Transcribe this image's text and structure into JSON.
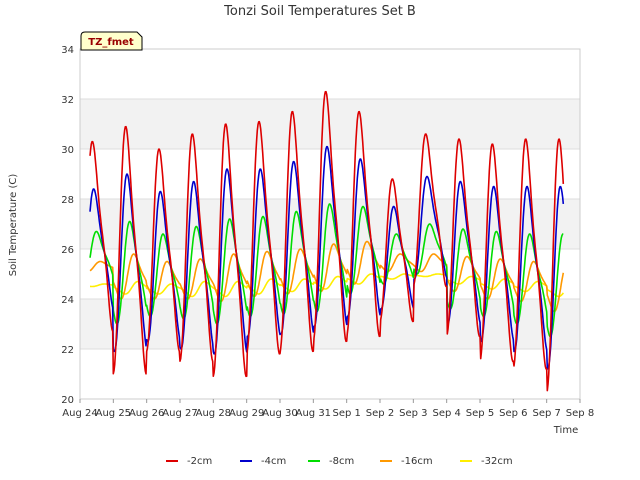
{
  "chart_data": {
    "type": "line",
    "title": "Tonzi Soil Temperatures Set B",
    "xlabel": "Time",
    "ylabel": "Soil Temperature (C)",
    "ylim": [
      20,
      34
    ],
    "yticks": [
      20,
      22,
      24,
      26,
      28,
      30,
      32,
      34
    ],
    "xlim": [
      0,
      15
    ],
    "xtick_labels": [
      "Aug 24",
      "Aug 25",
      "Aug 26",
      "Aug 27",
      "Aug 28",
      "Aug 29",
      "Aug 30",
      "Aug 31",
      "Sep 1",
      "Sep 2",
      "Sep 3",
      "Sep 4",
      "Sep 5",
      "Sep 6",
      "Sep 7",
      "Sep 8"
    ],
    "grid": true,
    "legend_position": "bottom",
    "badge": "TZ_fmet",
    "colors": {
      "-2cm": "#dd0000",
      "-4cm": "#0000cc",
      "-8cm": "#00dd00",
      "-16cm": "#ff9900",
      "-32cm": "#ffee00"
    },
    "series": [
      {
        "name": "-2cm",
        "color": "#dd0000",
        "x": [
          0.5,
          1.5,
          2.5,
          3.5,
          4.5,
          5.5,
          6.5,
          7.5,
          8.5,
          9.5,
          10.5,
          11.5,
          12.5,
          13.5,
          14.5
        ],
        "min": [
          22.7,
          21.0,
          21.9,
          21.5,
          20.9,
          21.8,
          21.9,
          22.3,
          22.5,
          23.1,
          24.5,
          22.5,
          21.5,
          21.2,
          20.2
        ],
        "max": [
          30.3,
          30.9,
          30.0,
          30.6,
          31.0,
          31.1,
          31.5,
          32.3,
          31.5,
          28.8,
          30.6,
          30.4,
          30.2,
          30.4,
          30.4
        ]
      },
      {
        "name": "-4cm",
        "color": "#0000cc",
        "x": [
          0.5,
          1.5,
          2.5,
          3.5,
          4.5,
          5.5,
          6.5,
          7.5,
          8.5,
          9.5,
          10.5,
          11.5,
          12.5,
          13.5,
          14.5
        ],
        "min": [
          23.5,
          21.9,
          22.3,
          22.0,
          21.8,
          22.5,
          22.6,
          22.9,
          23.3,
          23.6,
          24.8,
          23.0,
          22.3,
          21.9,
          21.2
        ],
        "max": [
          28.4,
          29.0,
          28.3,
          28.7,
          29.2,
          29.2,
          29.5,
          30.1,
          29.6,
          27.7,
          28.9,
          28.7,
          28.5,
          28.5,
          28.5
        ]
      },
      {
        "name": "-8cm",
        "color": "#00dd00",
        "x": [
          0.5,
          1.5,
          2.5,
          3.5,
          4.5,
          5.5,
          6.5,
          7.5,
          8.5,
          9.5,
          10.5,
          11.5,
          12.5,
          13.5,
          14.5
        ],
        "min": [
          24.6,
          23.0,
          23.3,
          23.2,
          23.0,
          23.3,
          23.4,
          23.5,
          24.2,
          24.6,
          25.0,
          23.6,
          23.3,
          23.0,
          22.5
        ],
        "max": [
          26.7,
          27.1,
          26.6,
          26.9,
          27.2,
          27.3,
          27.5,
          27.8,
          27.7,
          26.6,
          27.0,
          26.8,
          26.7,
          26.6,
          26.6
        ]
      },
      {
        "name": "-16cm",
        "color": "#ff9900",
        "x": [
          0.5,
          1.5,
          2.5,
          3.5,
          4.5,
          5.5,
          6.5,
          7.5,
          8.5,
          9.5,
          10.5,
          11.5,
          12.5,
          13.5,
          14.5
        ],
        "min": [
          25.1,
          24.0,
          24.0,
          24.0,
          23.9,
          24.1,
          24.2,
          24.3,
          24.6,
          25.1,
          25.1,
          24.3,
          24.0,
          23.9,
          23.5
        ],
        "max": [
          25.5,
          25.8,
          25.5,
          25.6,
          25.8,
          25.9,
          26.0,
          26.2,
          26.3,
          25.8,
          25.8,
          25.7,
          25.6,
          25.5,
          25.4
        ]
      },
      {
        "name": "-32cm",
        "color": "#ffee00",
        "x": [
          0.5,
          1.5,
          2.5,
          3.5,
          4.5,
          5.5,
          6.5,
          7.5,
          8.5,
          9.5,
          10.5,
          11.5,
          12.5,
          13.5,
          14.5
        ],
        "min": [
          24.5,
          24.2,
          24.2,
          24.1,
          24.1,
          24.2,
          24.3,
          24.4,
          24.6,
          24.8,
          24.9,
          24.6,
          24.4,
          24.3,
          24.1
        ],
        "max": [
          24.6,
          24.7,
          24.6,
          24.7,
          24.7,
          24.8,
          24.8,
          24.9,
          25.0,
          25.0,
          25.0,
          24.9,
          24.8,
          24.7,
          24.6
        ]
      }
    ]
  }
}
